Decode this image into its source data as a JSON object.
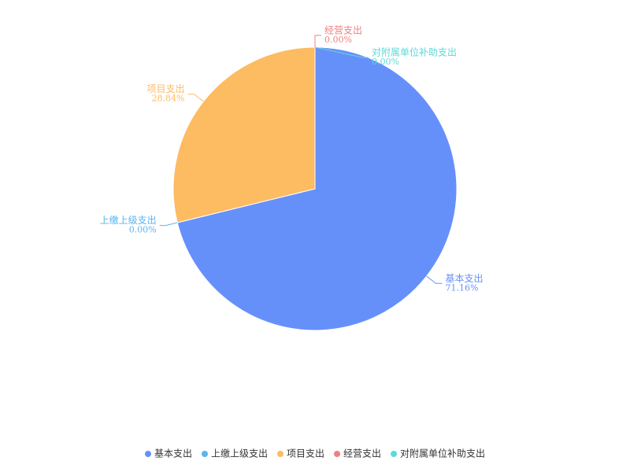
{
  "chart_data": {
    "type": "pie",
    "categories": [
      "基本支出",
      "上缴上级支出",
      "项目支出",
      "经营支出",
      "对附属单位补助支出"
    ],
    "values": [
      71.16,
      0.0,
      28.84,
      0.0,
      0.0
    ],
    "value_labels": [
      "71.16%",
      "0.00%",
      "28.84%",
      "0.00%",
      "0.00%"
    ],
    "colors": [
      "#6690f9",
      "#5ab4f0",
      "#fdbb62",
      "#f08080",
      "#5fd8d8"
    ],
    "legend": "bottom"
  }
}
